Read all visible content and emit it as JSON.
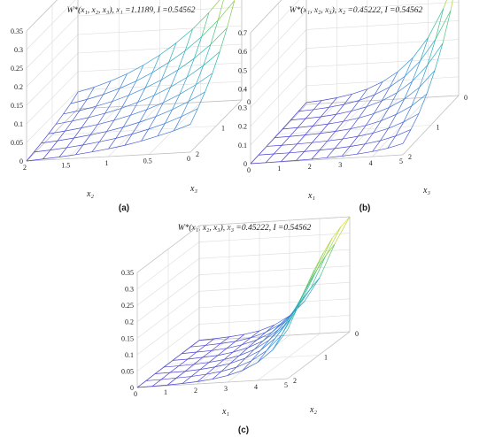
{
  "figure": {
    "captions": [
      "(a)",
      "(b)",
      "(c)"
    ]
  },
  "chart_data": [
    {
      "type": "surface",
      "title": "W*(x₁, x₂, x₃), x₁ =1.1189, I =0.54562",
      "xlabel": "x₂",
      "ylabel": "x₃",
      "x_ticks": [
        "0",
        "0.5",
        "1",
        "1.5",
        "2"
      ],
      "y_ticks": [
        "0",
        "1",
        "2"
      ],
      "z_ticks": [
        "0",
        "0.05",
        "0.1",
        "0.15",
        "0.2",
        "0.25",
        "0.3",
        "0.35"
      ],
      "xlim": [
        0,
        2
      ],
      "ylim": [
        0,
        2
      ],
      "zlim": [
        0,
        0.35
      ],
      "grid": true,
      "colormap": [
        "#4b3fd0",
        "#3a8fd8",
        "#20b8b0",
        "#7fcd4a",
        "#e6df2a"
      ],
      "rows": [
        [
          0.0,
          0.003,
          0.006,
          0.01,
          0.015,
          0.021,
          0.028,
          0.037,
          0.048,
          0.06,
          0.075
        ],
        [
          0.004,
          0.007,
          0.011,
          0.016,
          0.022,
          0.029,
          0.038,
          0.049,
          0.062,
          0.078,
          0.097
        ],
        [
          0.008,
          0.012,
          0.017,
          0.023,
          0.03,
          0.039,
          0.05,
          0.063,
          0.079,
          0.099,
          0.122
        ],
        [
          0.013,
          0.018,
          0.024,
          0.031,
          0.04,
          0.051,
          0.064,
          0.08,
          0.1,
          0.124,
          0.152
        ],
        [
          0.019,
          0.025,
          0.032,
          0.041,
          0.052,
          0.066,
          0.082,
          0.102,
          0.126,
          0.155,
          0.19
        ],
        [
          0.026,
          0.033,
          0.042,
          0.053,
          0.067,
          0.084,
          0.104,
          0.128,
          0.157,
          0.192,
          0.234
        ],
        [
          0.034,
          0.043,
          0.054,
          0.068,
          0.085,
          0.106,
          0.131,
          0.16,
          0.195,
          0.237,
          0.287
        ],
        [
          0.045,
          0.056,
          0.07,
          0.087,
          0.108,
          0.133,
          0.163,
          0.198,
          0.24,
          0.29,
          0.35
        ]
      ]
    },
    {
      "type": "surface",
      "title": "W*(x₁, x₂, x₃), x₂ =0.45222, I =0.54562",
      "xlabel": "x₁",
      "ylabel": "x₃",
      "x_ticks": [
        "0",
        "1",
        "2",
        "3",
        "4",
        "5"
      ],
      "y_ticks": [
        "0",
        "1",
        "2"
      ],
      "z_ticks": [
        "0",
        "0.1",
        "0.2",
        "0.3",
        "0.4",
        "0.5",
        "0.6",
        "0.7"
      ],
      "xlim": [
        0,
        5
      ],
      "ylim": [
        0,
        2
      ],
      "zlim": [
        0,
        0.7
      ],
      "grid": true,
      "colormap": [
        "#4b3fd0",
        "#3a8fd8",
        "#20b8b0",
        "#7fcd4a",
        "#e6df2a"
      ],
      "rows": [
        [
          0.0,
          0.001,
          0.002,
          0.003,
          0.005,
          0.008,
          0.012,
          0.018,
          0.027,
          0.04,
          0.06
        ],
        [
          0.001,
          0.002,
          0.003,
          0.005,
          0.008,
          0.012,
          0.018,
          0.027,
          0.04,
          0.06,
          0.09
        ],
        [
          0.002,
          0.003,
          0.005,
          0.008,
          0.012,
          0.018,
          0.027,
          0.04,
          0.06,
          0.09,
          0.13
        ],
        [
          0.003,
          0.005,
          0.008,
          0.012,
          0.018,
          0.027,
          0.04,
          0.06,
          0.09,
          0.13,
          0.19
        ],
        [
          0.004,
          0.007,
          0.011,
          0.017,
          0.026,
          0.039,
          0.058,
          0.086,
          0.126,
          0.185,
          0.27
        ],
        [
          0.006,
          0.01,
          0.015,
          0.023,
          0.036,
          0.054,
          0.081,
          0.12,
          0.176,
          0.258,
          0.37
        ],
        [
          0.008,
          0.013,
          0.02,
          0.031,
          0.048,
          0.073,
          0.11,
          0.163,
          0.24,
          0.35,
          0.5
        ],
        [
          0.01,
          0.016,
          0.026,
          0.041,
          0.063,
          0.097,
          0.146,
          0.217,
          0.32,
          0.47,
          0.68
        ]
      ]
    },
    {
      "type": "surface",
      "title": "W*(x₁, x₂, x₃), x₃ =0.45222, I =0.54562",
      "xlabel": "x₁",
      "ylabel": "x₂",
      "x_ticks": [
        "0",
        "1",
        "2",
        "3",
        "4",
        "5"
      ],
      "y_ticks": [
        "0",
        "1",
        "2"
      ],
      "z_ticks": [
        "0",
        "0.05",
        "0.1",
        "0.15",
        "0.2",
        "0.25",
        "0.3",
        "0.35"
      ],
      "xlim": [
        0,
        5
      ],
      "ylim": [
        0,
        2
      ],
      "zlim": [
        0,
        0.35
      ],
      "grid": true,
      "colormap": [
        "#4b3fd0",
        "#3a8fd8",
        "#20b8b0",
        "#7fcd4a",
        "#e6df2a"
      ],
      "rows": [
        [
          0.0,
          0.001,
          0.002,
          0.004,
          0.007,
          0.012,
          0.02,
          0.033,
          0.055,
          0.09,
          0.15
        ],
        [
          0.0,
          0.001,
          0.003,
          0.005,
          0.009,
          0.015,
          0.025,
          0.042,
          0.07,
          0.115,
          0.19
        ],
        [
          0.001,
          0.002,
          0.003,
          0.006,
          0.011,
          0.019,
          0.032,
          0.053,
          0.088,
          0.145,
          0.23
        ],
        [
          0.001,
          0.002,
          0.004,
          0.007,
          0.013,
          0.022,
          0.038,
          0.064,
          0.106,
          0.175,
          0.27
        ],
        [
          0.001,
          0.002,
          0.005,
          0.008,
          0.015,
          0.026,
          0.044,
          0.075,
          0.125,
          0.205,
          0.3
        ],
        [
          0.001,
          0.003,
          0.005,
          0.009,
          0.017,
          0.029,
          0.05,
          0.085,
          0.143,
          0.232,
          0.325
        ],
        [
          0.001,
          0.003,
          0.006,
          0.01,
          0.018,
          0.032,
          0.055,
          0.094,
          0.158,
          0.255,
          0.34
        ],
        [
          0.001,
          0.003,
          0.006,
          0.011,
          0.019,
          0.034,
          0.059,
          0.101,
          0.17,
          0.27,
          0.35
        ]
      ]
    }
  ]
}
